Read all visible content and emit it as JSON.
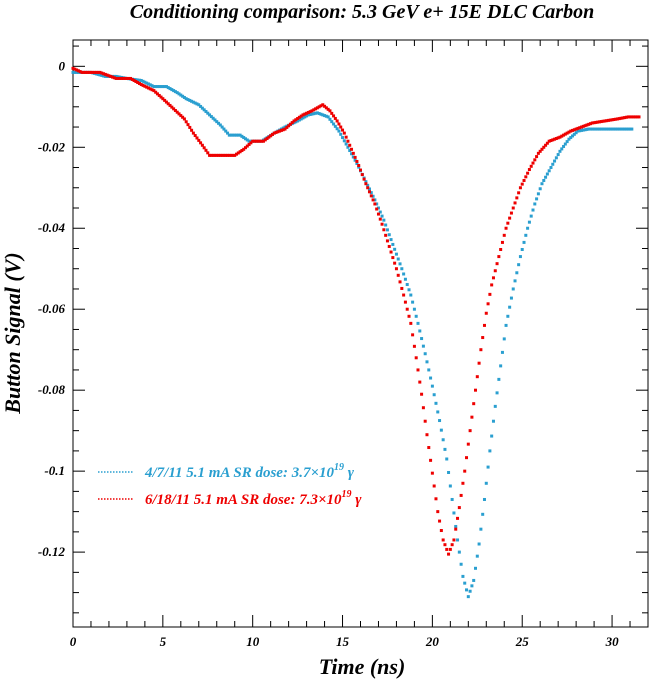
{
  "chart_data": {
    "type": "scatter",
    "title": "Conditioning comparison: 5.3 GeV e+ 15E DLC Carbon",
    "xlabel": "Time (ns)",
    "ylabel": "Button Signal (V)",
    "xlim": [
      0,
      32
    ],
    "ylim": [
      -0.1385,
      0.0065
    ],
    "x_ticks": [
      0,
      5,
      10,
      15,
      20,
      25,
      30
    ],
    "x_tick_labels": [
      "0",
      "5",
      "10",
      "15",
      "20",
      "25",
      "30"
    ],
    "y_ticks": [
      0,
      -0.02,
      -0.04,
      -0.06,
      -0.08,
      -0.1,
      -0.12
    ],
    "y_tick_labels": [
      "0",
      "-0.02",
      "-0.04",
      "-0.06",
      "-0.08",
      "-0.1",
      "-0.12"
    ],
    "grid": false,
    "legend_position": "lower-left",
    "series": [
      {
        "name": "4/7/11 5.1 mA  SR dose: 3.7×10",
        "name_sup": "19",
        "name_suffix": " γ",
        "color": "#2a9fd0",
        "points": [
          [
            0,
            -0.0015
          ],
          [
            1,
            -0.0015
          ],
          [
            1.8,
            -0.0025
          ],
          [
            2.4,
            -0.0025
          ],
          [
            3,
            -0.003
          ],
          [
            3.8,
            -0.0035
          ],
          [
            4.5,
            -0.005
          ],
          [
            5.2,
            -0.005
          ],
          [
            5.8,
            -0.0065
          ],
          [
            6.3,
            -0.008
          ],
          [
            7,
            -0.0095
          ],
          [
            7.6,
            -0.012
          ],
          [
            8.2,
            -0.0145
          ],
          [
            8.7,
            -0.017
          ],
          [
            9.3,
            -0.017
          ],
          [
            9.8,
            -0.0185
          ],
          [
            10.5,
            -0.0185
          ],
          [
            11.2,
            -0.0165
          ],
          [
            11.8,
            -0.015
          ],
          [
            12.5,
            -0.0135
          ],
          [
            13.1,
            -0.012
          ],
          [
            13.6,
            -0.0115
          ],
          [
            14.2,
            -0.0125
          ],
          [
            14.8,
            -0.016
          ],
          [
            15.3,
            -0.02
          ],
          [
            15.8,
            -0.024
          ],
          [
            16.3,
            -0.0285
          ],
          [
            16.8,
            -0.033
          ],
          [
            17.3,
            -0.038
          ],
          [
            17.8,
            -0.044
          ],
          [
            18.3,
            -0.05
          ],
          [
            18.8,
            -0.0565
          ],
          [
            19.2,
            -0.0635
          ],
          [
            19.6,
            -0.071
          ],
          [
            20,
            -0.079
          ],
          [
            20.4,
            -0.0875
          ],
          [
            20.8,
            -0.097
          ],
          [
            21.1,
            -0.107
          ],
          [
            21.4,
            -0.117
          ],
          [
            21.7,
            -0.126
          ],
          [
            22,
            -0.131
          ],
          [
            22.3,
            -0.127
          ],
          [
            22.6,
            -0.118
          ],
          [
            22.9,
            -0.107
          ],
          [
            23.2,
            -0.095
          ],
          [
            23.5,
            -0.084
          ],
          [
            23.8,
            -0.074
          ],
          [
            24.1,
            -0.064
          ],
          [
            24.5,
            -0.055
          ],
          [
            24.9,
            -0.047
          ],
          [
            25.3,
            -0.04
          ],
          [
            25.7,
            -0.034
          ],
          [
            26.1,
            -0.029
          ],
          [
            26.6,
            -0.025
          ],
          [
            27.1,
            -0.021
          ],
          [
            27.6,
            -0.018
          ],
          [
            28.1,
            -0.016
          ],
          [
            28.7,
            -0.0155
          ],
          [
            29.3,
            -0.0155
          ],
          [
            30,
            -0.0155
          ],
          [
            30.6,
            -0.0155
          ],
          [
            31.1,
            -0.0155
          ]
        ]
      },
      {
        "name": "6/18/11 5.1 mA  SR dose: 7.3×10",
        "name_sup": "19",
        "name_suffix": " γ",
        "color": "#ee0000",
        "points": [
          [
            0,
            -0.0005
          ],
          [
            0.5,
            -0.0015
          ],
          [
            1.5,
            -0.0015
          ],
          [
            2.4,
            -0.003
          ],
          [
            3.2,
            -0.003
          ],
          [
            3.8,
            -0.0045
          ],
          [
            4.5,
            -0.006
          ],
          [
            5,
            -0.008
          ],
          [
            5.6,
            -0.0105
          ],
          [
            6.2,
            -0.013
          ],
          [
            6.7,
            -0.0165
          ],
          [
            7.2,
            -0.0195
          ],
          [
            7.6,
            -0.022
          ],
          [
            8.2,
            -0.022
          ],
          [
            9,
            -0.022
          ],
          [
            9.5,
            -0.0205
          ],
          [
            10,
            -0.0185
          ],
          [
            10.6,
            -0.0185
          ],
          [
            11.2,
            -0.0165
          ],
          [
            11.8,
            -0.0155
          ],
          [
            12.3,
            -0.0135
          ],
          [
            12.8,
            -0.012
          ],
          [
            13.3,
            -0.011
          ],
          [
            13.9,
            -0.0095
          ],
          [
            14.3,
            -0.011
          ],
          [
            14.7,
            -0.0135
          ],
          [
            15.1,
            -0.0165
          ],
          [
            15.5,
            -0.0205
          ],
          [
            15.9,
            -0.0245
          ],
          [
            16.3,
            -0.029
          ],
          [
            16.8,
            -0.034
          ],
          [
            17.2,
            -0.039
          ],
          [
            17.6,
            -0.0445
          ],
          [
            18,
            -0.05
          ],
          [
            18.4,
            -0.0565
          ],
          [
            18.8,
            -0.0635
          ],
          [
            19.1,
            -0.072
          ],
          [
            19.4,
            -0.081
          ],
          [
            19.7,
            -0.091
          ],
          [
            20,
            -0.1005
          ],
          [
            20.3,
            -0.11
          ],
          [
            20.6,
            -0.117
          ],
          [
            20.9,
            -0.1205
          ],
          [
            21.2,
            -0.117
          ],
          [
            21.5,
            -0.109
          ],
          [
            21.8,
            -0.1
          ],
          [
            22.1,
            -0.09
          ],
          [
            22.4,
            -0.08
          ],
          [
            22.7,
            -0.07
          ],
          [
            23,
            -0.061
          ],
          [
            23.3,
            -0.054
          ],
          [
            23.7,
            -0.047
          ],
          [
            24.1,
            -0.04
          ],
          [
            24.5,
            -0.035
          ],
          [
            24.9,
            -0.03
          ],
          [
            25.4,
            -0.0255
          ],
          [
            25.9,
            -0.0215
          ],
          [
            26.5,
            -0.0185
          ],
          [
            27.1,
            -0.0175
          ],
          [
            27.7,
            -0.016
          ],
          [
            28.3,
            -0.015
          ],
          [
            28.9,
            -0.014
          ],
          [
            29.6,
            -0.0135
          ],
          [
            30.3,
            -0.013
          ],
          [
            30.9,
            -0.0125
          ],
          [
            31.5,
            -0.0125
          ]
        ]
      }
    ]
  }
}
